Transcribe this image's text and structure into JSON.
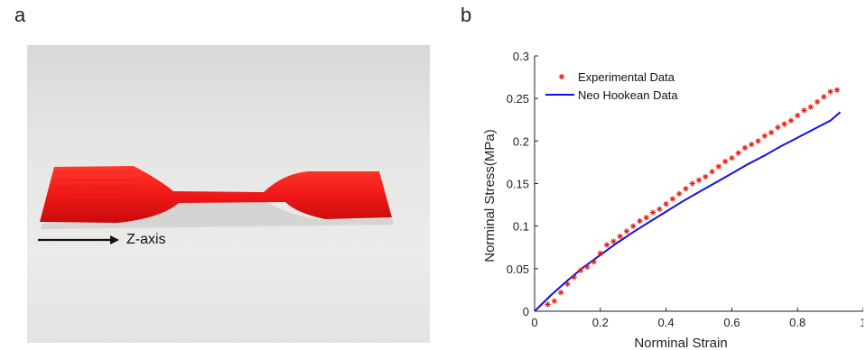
{
  "panels": {
    "a": {
      "label": "a",
      "annotation": "Z-axis"
    },
    "b": {
      "label": "b"
    }
  },
  "colors": {
    "specimen": "#f01818",
    "experimental": "#e8190f",
    "model": "#1010e8",
    "axis": "#222222"
  },
  "chart_data": {
    "type": "line",
    "title": "",
    "xlabel": "Norminal Strain",
    "ylabel": "Norminal Stress(MPa)",
    "xlim": [
      0,
      1
    ],
    "ylim": [
      0,
      0.3
    ],
    "x_ticks": [
      "0",
      "0.2",
      "0.4",
      "0.6",
      "0.8",
      "1"
    ],
    "y_ticks": [
      "0",
      "0.05",
      "0.1",
      "0.15",
      "0.2",
      "0.25",
      "0.3"
    ],
    "grid": false,
    "legend_position": "top-left",
    "series": [
      {
        "name": "Experimental Data",
        "style": "markers",
        "marker": "asterisk",
        "x": [
          0.04,
          0.06,
          0.08,
          0.1,
          0.12,
          0.14,
          0.16,
          0.18,
          0.2,
          0.22,
          0.24,
          0.26,
          0.28,
          0.3,
          0.32,
          0.34,
          0.36,
          0.38,
          0.4,
          0.42,
          0.44,
          0.46,
          0.48,
          0.5,
          0.52,
          0.54,
          0.56,
          0.58,
          0.6,
          0.62,
          0.64,
          0.66,
          0.68,
          0.7,
          0.72,
          0.74,
          0.76,
          0.78,
          0.8,
          0.82,
          0.84,
          0.86,
          0.88,
          0.9,
          0.92
        ],
        "y": [
          0.008,
          0.012,
          0.022,
          0.032,
          0.04,
          0.048,
          0.052,
          0.058,
          0.068,
          0.078,
          0.082,
          0.088,
          0.094,
          0.1,
          0.106,
          0.11,
          0.116,
          0.12,
          0.126,
          0.132,
          0.138,
          0.144,
          0.15,
          0.154,
          0.158,
          0.164,
          0.17,
          0.176,
          0.18,
          0.186,
          0.192,
          0.196,
          0.2,
          0.206,
          0.21,
          0.216,
          0.22,
          0.224,
          0.23,
          0.236,
          0.24,
          0.246,
          0.252,
          0.258,
          0.26
        ]
      },
      {
        "name": "Neo Hookean Data",
        "style": "line",
        "x": [
          0,
          0.05,
          0.1,
          0.15,
          0.2,
          0.25,
          0.3,
          0.35,
          0.4,
          0.45,
          0.5,
          0.55,
          0.6,
          0.65,
          0.7,
          0.75,
          0.8,
          0.85,
          0.9,
          0.93
        ],
        "y": [
          0,
          0.019,
          0.036,
          0.052,
          0.066,
          0.08,
          0.093,
          0.105,
          0.117,
          0.129,
          0.14,
          0.151,
          0.162,
          0.173,
          0.183,
          0.194,
          0.204,
          0.214,
          0.224,
          0.234
        ]
      }
    ]
  }
}
